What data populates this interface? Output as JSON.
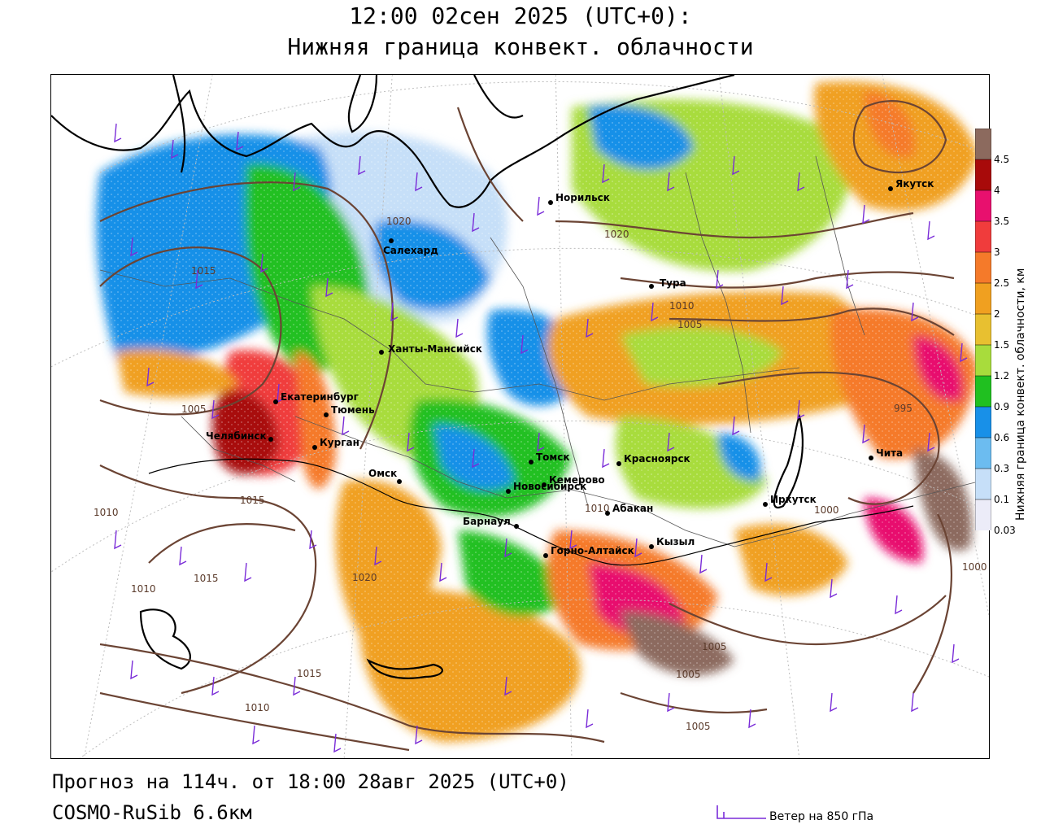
{
  "header": {
    "datetime": "12:00 02сен 2025 (UTC+0):",
    "parameter": "Нижняя граница конвект. облачности"
  },
  "footer": {
    "forecast": "Прогноз на 114ч. от 18:00 28авг 2025 (UTC+0)",
    "model": "COSMO-RuSib 6.6км",
    "wind_key": "Ветер на 850 гПа"
  },
  "legend": {
    "title": "Нижняя граница конвект. облачности, км",
    "ticks": [
      "4.5",
      "4",
      "3.5",
      "3",
      "2.5",
      "2",
      "1.5",
      "1.2",
      "0.9",
      "0.6",
      "0.3",
      "0.1",
      "0.03"
    ],
    "colors": [
      "#8c6a5e",
      "#a80a0a",
      "#e8106e",
      "#f03c3c",
      "#f57a2a",
      "#f0a020",
      "#e8c030",
      "#a8dc3c",
      "#20c020",
      "#1890e8",
      "#6cbcf0",
      "#c6dff8",
      "#ececf8"
    ]
  },
  "cities": [
    {
      "name": "Якутск",
      "label": "Якутск"
    },
    {
      "name": "Норильск",
      "label": "Норильск"
    },
    {
      "name": "Салехард",
      "label": "Салехард"
    },
    {
      "name": "Тура",
      "label": "Тура"
    },
    {
      "name": "Ханты-Мансийск",
      "label": "Ханты-Мансийск"
    },
    {
      "name": "Екатеринбург",
      "label": "Екатеринбург"
    },
    {
      "name": "Тюмень",
      "label": "Тюмень"
    },
    {
      "name": "Челябинск",
      "label": "Челябинск"
    },
    {
      "name": "Курган",
      "label": "Курган"
    },
    {
      "name": "Омск",
      "label": "Омск"
    },
    {
      "name": "Новосибирск",
      "label": "Новосибирск"
    },
    {
      "name": "Томск",
      "label": "Томск"
    },
    {
      "name": "Кемерово",
      "label": "Кемерово"
    },
    {
      "name": "Красноярск",
      "label": "Красноярск"
    },
    {
      "name": "Барнаул",
      "label": "Барнаул"
    },
    {
      "name": "Абакан",
      "label": "Абакан"
    },
    {
      "name": "Горно-Алтайск",
      "label": "Горно-Алтайск"
    },
    {
      "name": "Кызыл",
      "label": "Кызыл"
    },
    {
      "name": "Иркутск",
      "label": "Иркутск"
    },
    {
      "name": "Чита",
      "label": "Чита"
    }
  ],
  "isobar_labels": [
    "1020",
    "1015",
    "1010",
    "1005",
    "1000",
    "995",
    "1020",
    "1015",
    "1010",
    "1005",
    "1005",
    "1005",
    "1005",
    "1000",
    "1010",
    "1020",
    "1015",
    "1010",
    "1005",
    "1015",
    "1010"
  ]
}
